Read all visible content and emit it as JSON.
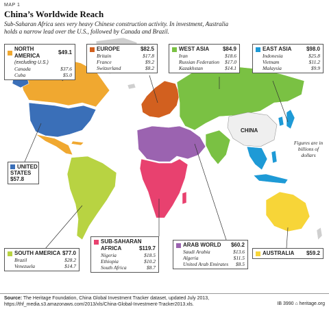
{
  "header": {
    "map_label": "MAP 1",
    "title": "China’s Worldwide Reach",
    "subtitle": "Sub-Saharan Africa sees very heavy Chinese construction activity. In investment, Australia holds a narrow lead over the U.S., followed by Canada and Brazil."
  },
  "colors": {
    "north_america": "#f0a830",
    "united_states": "#3a6fb8",
    "europe": "#d2601f",
    "west_asia": "#7ac143",
    "east_asia": "#1e9ad6",
    "south_america": "#b8d342",
    "sub_saharan_africa": "#e8416f",
    "arab_world": "#9b63b0",
    "australia": "#f7d538",
    "china": "#efefef",
    "no_data": "#cfcfcf"
  },
  "map_labels": {
    "china": "CHINA",
    "figures_note": "Figures are in billions of dollars"
  },
  "regions": {
    "north_america": {
      "name": "NORTH AMERICA",
      "qualifier": "(excluding U.S.)",
      "total": "$49.1",
      "countries": [
        {
          "name": "Canada",
          "value": "$37.6"
        },
        {
          "name": "Cuba",
          "value": "$5.0"
        }
      ]
    },
    "united_states": {
      "name_line1": "UNITED",
      "name_line2": "STATES",
      "total": "$57.8"
    },
    "europe": {
      "name": "EUROPE",
      "total": "$82.5",
      "countries": [
        {
          "name": "Britain",
          "value": "$17.8"
        },
        {
          "name": "France",
          "value": "$9.2"
        },
        {
          "name": "Switzerland",
          "value": "$8.2"
        }
      ]
    },
    "west_asia": {
      "name": "WEST ASIA",
      "total": "$84.9",
      "countries": [
        {
          "name": "Iran",
          "value": "$18.6"
        },
        {
          "name": "Russian Federation",
          "value": "$17.0"
        },
        {
          "name": "Kazakhstan",
          "value": "$14.1"
        }
      ]
    },
    "east_asia": {
      "name": "EAST ASIA",
      "total": "$98.0",
      "countries": [
        {
          "name": "Indonesia",
          "value": "$25.8"
        },
        {
          "name": "Vietnam",
          "value": "$11.2"
        },
        {
          "name": "Malaysia",
          "value": "$9.9"
        }
      ]
    },
    "south_america": {
      "name": "SOUTH AMERICA",
      "total": "$77.0",
      "countries": [
        {
          "name": "Brazil",
          "value": "$28.2"
        },
        {
          "name": "Venezuela",
          "value": "$14.7"
        }
      ]
    },
    "sub_saharan_africa": {
      "name_line1": "SUB-SAHARAN",
      "name_line2": "AFRICA",
      "total": "$119.7",
      "countries": [
        {
          "name": "Nigeria",
          "value": "$18.5"
        },
        {
          "name": "Ethiopia",
          "value": "$10.2"
        },
        {
          "name": "South Africa",
          "value": "$8.7"
        }
      ]
    },
    "arab_world": {
      "name": "ARAB WORLD",
      "total": "$60.2",
      "countries": [
        {
          "name": "Saudi Arabia",
          "value": "$13.6"
        },
        {
          "name": "Algeria",
          "value": "$11.5"
        },
        {
          "name": "United Arab Emirates",
          "value": "$8.5"
        }
      ]
    },
    "australia": {
      "name": "AUSTRALIA",
      "total": "$59.2"
    }
  },
  "footer": {
    "source_label": "Source:",
    "source_text": " The Heritage Foundation, China Global Investment Tracker dataset, updated July 2013,",
    "source_url": "https://thf_media.s3.amazonaws.com/2013/xls/China-Global-Investment-Tracker2013.xls.",
    "credit": "IB 3990  ⌂ heritage.org"
  }
}
